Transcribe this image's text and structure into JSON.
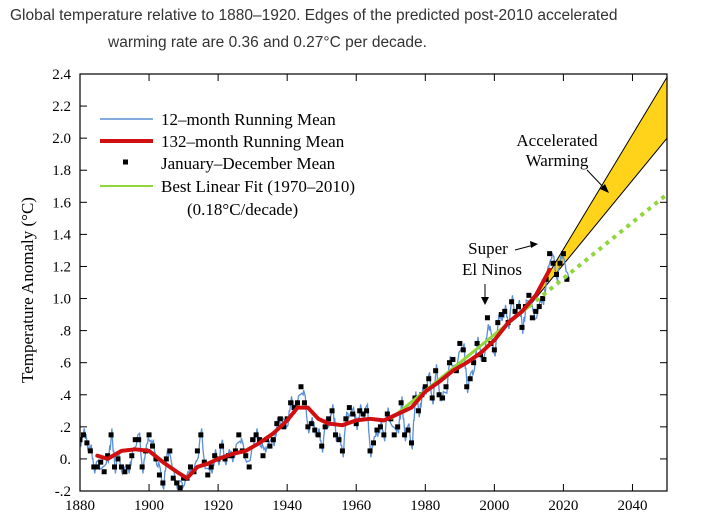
{
  "caption": {
    "line1": "Global temperature relative to 1880–1920. Edges of the predicted post-2010 accelerated",
    "line2": "warming rate  are 0.36 and 0.27°C per decade."
  },
  "chart_data": {
    "type": "line",
    "title": "",
    "xlabel": "",
    "ylabel": "Temperature Anomaly (°C)",
    "xlim": [
      1880,
      2050
    ],
    "ylim": [
      -0.2,
      2.4
    ],
    "x_ticks": [
      1880,
      1900,
      1920,
      1940,
      1960,
      1980,
      2000,
      2020,
      2040
    ],
    "x_tick_labels": [
      "1880",
      "1900",
      "1920",
      "1940",
      "1960",
      "1980",
      "2000",
      "2020",
      "2040"
    ],
    "y_ticks": [
      -0.2,
      0,
      0.2,
      0.4,
      0.6,
      0.8,
      1.0,
      1.2,
      1.4,
      1.6,
      1.8,
      2.0,
      2.2,
      2.4
    ],
    "y_tick_labels": [
      "-.2",
      "0.",
      ".2",
      ".4",
      ".6",
      ".8",
      "1.0",
      "1.2",
      "1.4",
      "1.6",
      "1.8",
      "2.0",
      "2.2",
      "2.4"
    ],
    "legend": [
      {
        "label": "12–month Running Mean",
        "color": "#5b8fd6",
        "style": "line"
      },
      {
        "label": "132–month Running Mean",
        "color": "#d01010",
        "style": "thick-line"
      },
      {
        "label": "January–December Mean",
        "color": "#000000",
        "style": "square-marker"
      },
      {
        "label": "Best Linear Fit (1970–2010)",
        "color": "#8fd63a",
        "style": "line"
      },
      {
        "label": "(0.18°C/decade)",
        "color": "#000000",
        "style": "none"
      }
    ],
    "annotations": [
      {
        "text": "Accelerated",
        "x": 2016,
        "y": 2.0
      },
      {
        "text": "Warming",
        "x": 2016,
        "y": 1.85
      },
      {
        "text": "Super",
        "x": 2000,
        "y": 1.27
      },
      {
        "text": "El Ninos",
        "x": 2000,
        "y": 1.13
      }
    ],
    "annual_means": {
      "years": [
        1880,
        1881,
        1882,
        1883,
        1884,
        1885,
        1886,
        1887,
        1888,
        1889,
        1890,
        1891,
        1892,
        1893,
        1894,
        1895,
        1896,
        1897,
        1898,
        1899,
        1900,
        1901,
        1902,
        1903,
        1904,
        1905,
        1906,
        1907,
        1908,
        1909,
        1910,
        1911,
        1912,
        1913,
        1914,
        1915,
        1916,
        1917,
        1918,
        1919,
        1920,
        1921,
        1922,
        1923,
        1924,
        1925,
        1926,
        1927,
        1928,
        1929,
        1930,
        1931,
        1932,
        1933,
        1934,
        1935,
        1936,
        1937,
        1938,
        1939,
        1940,
        1941,
        1942,
        1943,
        1944,
        1945,
        1946,
        1947,
        1948,
        1949,
        1950,
        1951,
        1952,
        1953,
        1954,
        1955,
        1956,
        1957,
        1958,
        1959,
        1960,
        1961,
        1962,
        1963,
        1964,
        1965,
        1966,
        1967,
        1968,
        1969,
        1970,
        1971,
        1972,
        1973,
        1974,
        1975,
        1976,
        1977,
        1978,
        1979,
        1980,
        1981,
        1982,
        1983,
        1984,
        1985,
        1986,
        1987,
        1988,
        1989,
        1990,
        1991,
        1992,
        1993,
        1994,
        1995,
        1996,
        1997,
        1998,
        1999,
        2000,
        2001,
        2002,
        2003,
        2004,
        2005,
        2006,
        2007,
        2008,
        2009,
        2010,
        2011,
        2012,
        2013,
        2014,
        2015,
        2016,
        2017,
        2018,
        2019,
        2020,
        2021
      ],
      "values": [
        0.12,
        0.15,
        0.1,
        0.05,
        -0.05,
        -0.05,
        -0.02,
        -0.08,
        0.02,
        0.15,
        -0.05,
        0.0,
        -0.05,
        -0.08,
        -0.05,
        0.02,
        0.12,
        0.12,
        -0.05,
        0.05,
        0.15,
        0.08,
        0.0,
        -0.1,
        -0.15,
        0.0,
        0.05,
        -0.12,
        -0.15,
        -0.18,
        -0.12,
        -0.12,
        -0.05,
        -0.08,
        0.05,
        0.15,
        -0.02,
        -0.1,
        -0.05,
        0.02,
        0.0,
        0.08,
        0.0,
        0.02,
        0.02,
        0.05,
        0.15,
        0.05,
        0.02,
        -0.05,
        0.12,
        0.15,
        0.12,
        0.02,
        0.12,
        0.08,
        0.12,
        0.22,
        0.25,
        0.2,
        0.25,
        0.35,
        0.32,
        0.35,
        0.45,
        0.35,
        0.2,
        0.22,
        0.18,
        0.15,
        0.08,
        0.2,
        0.25,
        0.3,
        0.15,
        0.12,
        0.05,
        0.25,
        0.32,
        0.28,
        0.22,
        0.3,
        0.28,
        0.3,
        0.05,
        0.1,
        0.18,
        0.2,
        0.15,
        0.28,
        0.25,
        0.15,
        0.2,
        0.35,
        0.15,
        0.18,
        0.1,
        0.38,
        0.3,
        0.4,
        0.45,
        0.5,
        0.38,
        0.55,
        0.4,
        0.38,
        0.45,
        0.6,
        0.62,
        0.55,
        0.72,
        0.68,
        0.45,
        0.5,
        0.6,
        0.72,
        0.65,
        0.62,
        0.88,
        0.72,
        0.68,
        0.85,
        0.9,
        0.92,
        0.85,
        0.98,
        0.92,
        0.95,
        0.82,
        0.95,
        1.02,
        0.88,
        0.92,
        0.95,
        1.0,
        1.12,
        1.28,
        1.22,
        1.15,
        1.22,
        1.28,
        1.12
      ]
    },
    "running_mean_132": {
      "x": [
        1885,
        1888,
        1892,
        1896,
        1900,
        1904,
        1908,
        1911,
        1914,
        1917,
        1920,
        1924,
        1928,
        1932,
        1936,
        1940,
        1943,
        1946,
        1949,
        1952,
        1956,
        1960,
        1964,
        1968,
        1972,
        1976,
        1980,
        1984,
        1988,
        1992,
        1996,
        2000,
        2004,
        2008,
        2012,
        2016
      ],
      "y": [
        0.02,
        0.0,
        0.05,
        0.06,
        0.05,
        -0.02,
        -0.08,
        -0.12,
        -0.05,
        -0.03,
        0.0,
        0.03,
        0.05,
        0.1,
        0.16,
        0.24,
        0.32,
        0.32,
        0.25,
        0.22,
        0.21,
        0.24,
        0.25,
        0.24,
        0.28,
        0.32,
        0.42,
        0.48,
        0.55,
        0.6,
        0.66,
        0.74,
        0.85,
        0.92,
        1.02,
        1.18
      ]
    },
    "linear_fit": {
      "x": [
        1970,
        2050
      ],
      "y": [
        0.25,
        1.65
      ],
      "slope": "0.18°C/decade"
    },
    "accelerated_wedge": {
      "start": [
        2010,
        0.95
      ],
      "upper_end": [
        2050,
        2.38
      ],
      "lower_end": [
        2050,
        2.0
      ],
      "upper_rate": 0.36,
      "lower_rate": 0.27
    }
  }
}
